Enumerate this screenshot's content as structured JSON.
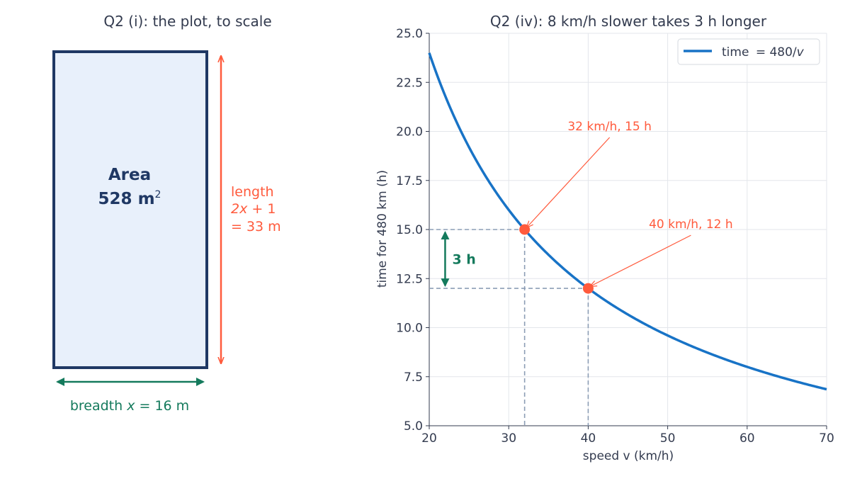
{
  "colors": {
    "navy": "#1f3864",
    "panel_fill": "#e8f0fb",
    "accent_orange": "#ff5a3c",
    "accent_green": "#147a5c",
    "curve_blue": "#1873c6",
    "guide_gray": "#8c9db5",
    "text_dark": "#333b4f",
    "grid": "#e3e6eb"
  },
  "left_panel": {
    "title": "Q2 (i): the plot, to scale",
    "area_label": "Area",
    "area_value": "528 m",
    "area_unit_sup": "2",
    "length_line1": "length",
    "length_var": "2x",
    "length_plus": " + 1",
    "length_line3": "= 33 m",
    "breadth_prefix": "breadth ",
    "breadth_var": "x",
    "breadth_suffix": " = 16 m"
  },
  "chart_data": {
    "type": "line",
    "title": "Q2 (iv): 8 km/h slower takes 3 h longer",
    "xlabel": "speed v (km/h)",
    "ylabel": "time for 480 km (h)",
    "xlim": [
      20,
      70
    ],
    "ylim": [
      5,
      25
    ],
    "x_ticks": [
      20,
      30,
      40,
      50,
      60,
      70
    ],
    "x_tick_labels": [
      "20",
      "30",
      "40",
      "50",
      "60",
      "70"
    ],
    "y_ticks": [
      5,
      7.5,
      10,
      12.5,
      15,
      17.5,
      20,
      22.5,
      25
    ],
    "y_tick_labels": [
      "5.0",
      "7.5",
      "10.0",
      "12.5",
      "15.0",
      "17.5",
      "20.0",
      "22.5",
      "25.0"
    ],
    "grid": true,
    "legend_position": "top-right",
    "series": [
      {
        "name": "time = 480/v",
        "function": "480/v",
        "color": "#1873c6"
      }
    ],
    "legend_prefix": "time ",
    "legend_eq": "= 480/",
    "legend_var": "v",
    "points": [
      {
        "x": 32,
        "y": 15,
        "label": "32 km/h, 15 h"
      },
      {
        "x": 40,
        "y": 12,
        "label": "40 km/h, 12 h"
      }
    ],
    "gap": {
      "x": 22,
      "from": 12,
      "to": 15,
      "label": "3 h"
    }
  }
}
